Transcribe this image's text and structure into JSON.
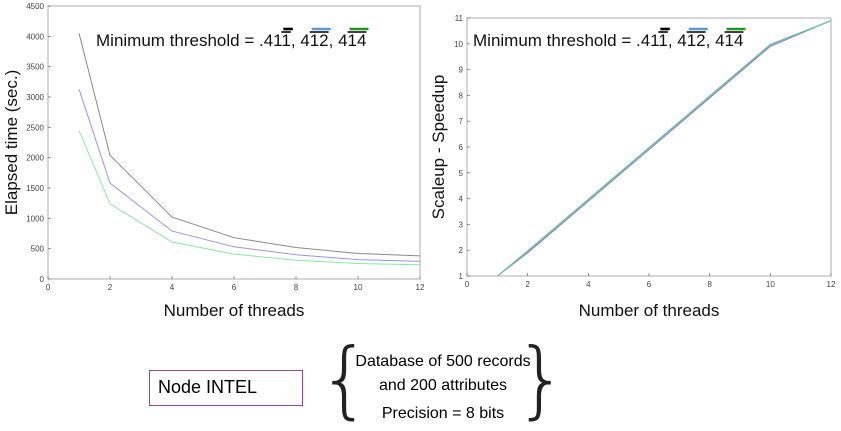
{
  "chart_data": [
    {
      "type": "line",
      "ylabel": "Elapsed time (sec.)",
      "xlabel": "Number of threads",
      "annotation": {
        "prefix": "Minimum threshold = .4",
        "parts": [
          {
            "text": "11",
            "bar_color": "#000000",
            "bar_over": "1"
          },
          {
            "sep": ", 4",
            "text": "12",
            "bar_color": "#5b9bd5",
            "bar_over": "12"
          },
          {
            "sep": ", 4",
            "text": "14",
            "bar_color": "#1a9a1a",
            "bar_over": "14"
          }
        ]
      },
      "xlim": [
        0,
        12
      ],
      "ylim": [
        0,
        4500
      ],
      "xticks": [
        0,
        2,
        4,
        6,
        8,
        10,
        12
      ],
      "yticks": [
        0,
        500,
        1000,
        1500,
        2000,
        2500,
        3000,
        3500,
        4000,
        4500
      ],
      "series": [
        {
          "color": "#8a8a8a",
          "x": [
            1,
            2,
            4,
            6,
            8,
            10,
            12
          ],
          "y": [
            4050,
            2040,
            1020,
            680,
            520,
            420,
            380
          ]
        },
        {
          "color": "#9a93e8",
          "x": [
            1,
            2,
            4,
            6,
            8,
            10,
            12
          ],
          "y": [
            3130,
            1580,
            790,
            530,
            400,
            320,
            290
          ]
        },
        {
          "color": "#8ce8a8",
          "x": [
            1,
            2,
            4,
            6,
            8,
            10,
            12
          ],
          "y": [
            2450,
            1240,
            610,
            410,
            310,
            255,
            235
          ]
        }
      ]
    },
    {
      "type": "line",
      "ylabel": "Scaleup - Speedup",
      "xlabel": "Number of threads",
      "annotation": {
        "prefix": "Minimum threshold = .4",
        "parts": [
          {
            "text": "11",
            "bar_color": "#000000",
            "bar_over": "1"
          },
          {
            "sep": ", 4",
            "text": "12",
            "bar_color": "#5b9bd5",
            "bar_over": "12"
          },
          {
            "sep": ", 4",
            "text": "14",
            "bar_color": "#1a9a1a",
            "bar_over": "14"
          }
        ]
      },
      "xlim": [
        0,
        12
      ],
      "ylim": [
        1,
        11
      ],
      "xticks": [
        0,
        2,
        4,
        6,
        8,
        10,
        12
      ],
      "yticks": [
        1,
        2,
        3,
        4,
        5,
        6,
        7,
        8,
        9,
        10,
        11
      ],
      "series": [
        {
          "color": "#8a8a8a",
          "x": [
            1,
            2,
            4,
            6,
            8,
            10,
            12
          ],
          "y": [
            1,
            1.9,
            3.9,
            5.9,
            7.9,
            9.9,
            10.9
          ]
        },
        {
          "color": "#9a93e8",
          "x": [
            1,
            2,
            4,
            6,
            8,
            10,
            12
          ],
          "y": [
            1,
            1.95,
            3.95,
            5.95,
            7.95,
            9.95,
            10.9
          ]
        },
        {
          "color": "#5cc8b0",
          "x": [
            1,
            2,
            4,
            6,
            8,
            10,
            12
          ],
          "y": [
            1,
            1.98,
            3.98,
            5.98,
            7.98,
            9.98,
            10.9
          ]
        }
      ]
    }
  ],
  "node_label": "Node INTEL",
  "database": {
    "line1": "Database of 500 records",
    "line2": "and 200 attributes",
    "line3": "Precision = 8 bits"
  }
}
